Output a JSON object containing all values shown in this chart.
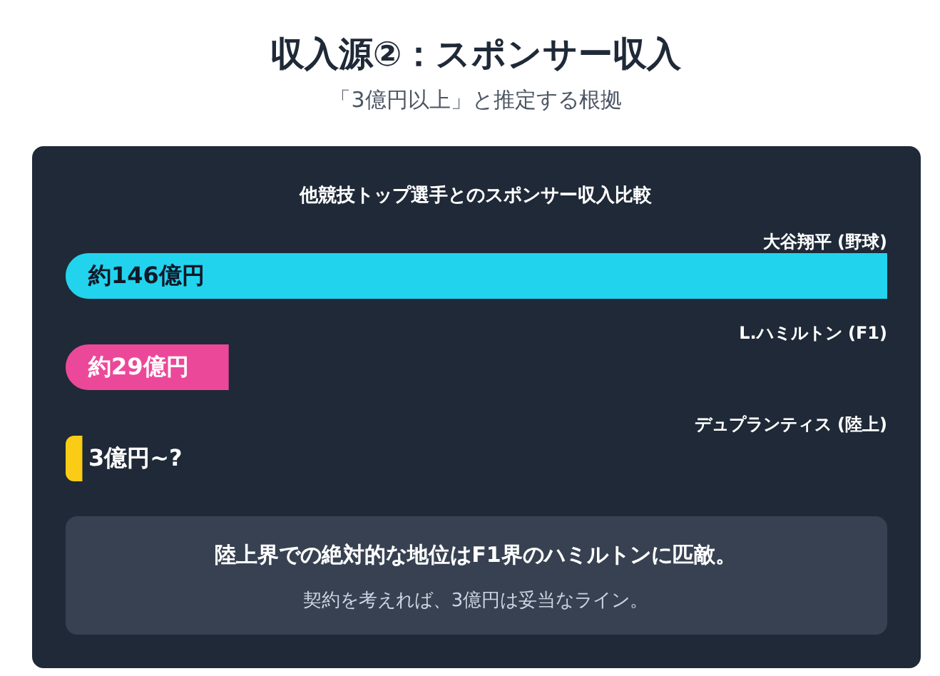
{
  "chart_data": {
    "type": "bar",
    "orientation": "horizontal",
    "title": "収入源②：スポンサー収入",
    "subtitle": "「3億円以上」と推定する根拠",
    "categories": [
      "大谷翔平 (野球)",
      "L.ハミルトン (F1)",
      "デュプランティス (陸上)"
    ],
    "values": [
      146,
      29,
      3
    ],
    "colors": [
      "#22d3ee",
      "#ec4899",
      "#facc15"
    ],
    "value_labels": [
      "約146億円",
      "約29億円",
      "3億円~?"
    ],
    "annotations": [
      "他競技トップ選手とのスポンサー収入比較",
      "陸上界での絶対的な地位はF1界のハミルトンに匹敵。",
      "契約を考えれば、3億円は妥当なライン。"
    ]
  }
}
